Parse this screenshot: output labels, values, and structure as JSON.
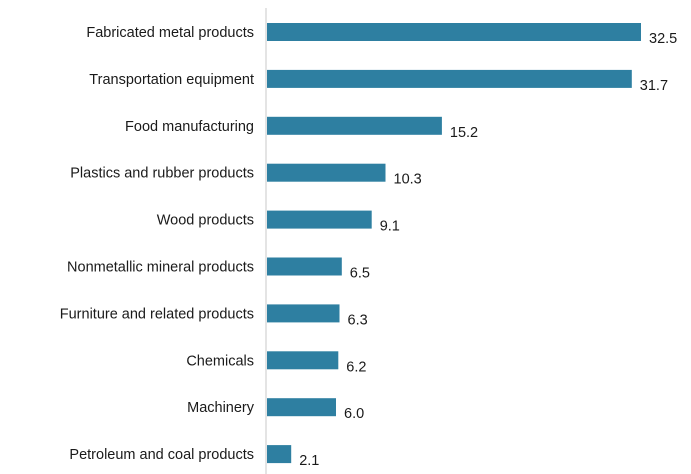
{
  "chart_data": {
    "type": "bar",
    "orientation": "horizontal",
    "title": "",
    "xlabel": "",
    "ylabel": "",
    "categories": [
      "Fabricated metal products",
      "Transportation equipment",
      "Food manufacturing",
      "Plastics and rubber products",
      "Wood products",
      "Nonmetallic mineral products",
      "Furniture and related products",
      "Chemicals",
      "Machinery",
      "Petroleum and coal products"
    ],
    "values": [
      32.5,
      31.7,
      15.2,
      10.3,
      9.1,
      6.5,
      6.3,
      6.2,
      6.0,
      2.1
    ],
    "value_labels": [
      "32.5",
      "31.7",
      "15.2",
      "10.3",
      "9.1",
      "6.5",
      "6.3",
      "6.2",
      "6.0",
      "2.1"
    ],
    "xlim": [
      0,
      32.5
    ],
    "bar_color": "#2e7fa1",
    "grid": false,
    "legend": "none"
  }
}
